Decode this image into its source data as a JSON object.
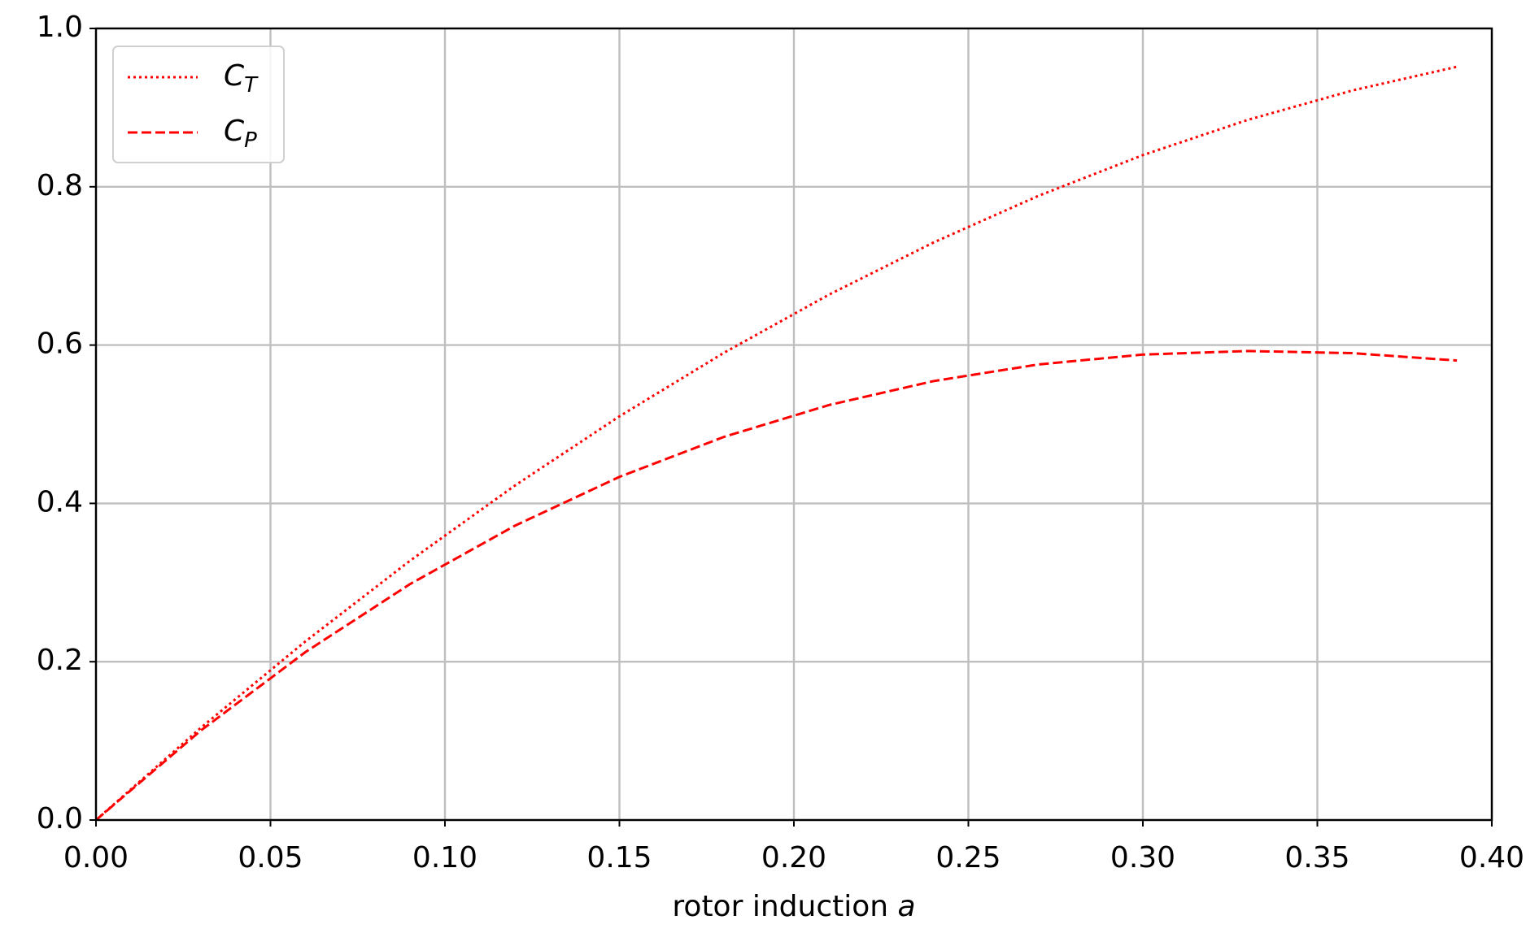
{
  "chart_data": {
    "type": "line",
    "xlabel": "rotor induction a",
    "x": [
      0,
      0.03,
      0.06,
      0.09,
      0.12,
      0.15,
      0.18,
      0.21,
      0.24,
      0.27,
      0.3,
      0.33,
      0.36,
      0.39
    ],
    "series": [
      {
        "name": "CT",
        "color": "#ff0000",
        "linestyle": "dotted",
        "values": [
          0,
          0.1164,
          0.2256,
          0.3276,
          0.4224,
          0.51,
          0.5904,
          0.6636,
          0.7296,
          0.7884,
          0.84,
          0.8844,
          0.9216,
          0.9516
        ]
      },
      {
        "name": "CP",
        "color": "#ff0000",
        "linestyle": "dashed",
        "values": [
          0,
          0.1129,
          0.2121,
          0.2981,
          0.3717,
          0.4335,
          0.4841,
          0.5242,
          0.5545,
          0.5755,
          0.588,
          0.5925,
          0.5898,
          0.5805
        ]
      }
    ],
    "xlim": [
      0,
      0.4
    ],
    "xticks": [
      {
        "value": 0,
        "label": "0.00"
      },
      0.05,
      {
        "value": 0.1,
        "label": "0.10"
      },
      0.15,
      {
        "value": 0.2,
        "label": "0.20"
      },
      0.25,
      {
        "value": 0.3,
        "label": "0.30"
      },
      0.35,
      {
        "value": 0.4,
        "label": "0.40"
      }
    ],
    "ylim": [
      0,
      1
    ],
    "yticks": [
      {
        "value": 0,
        "label": "0.0"
      },
      0.2,
      0.4,
      0.6,
      0.8,
      {
        "value": 1,
        "label": "1.0"
      }
    ],
    "grid": true,
    "legend": "upper left"
  }
}
